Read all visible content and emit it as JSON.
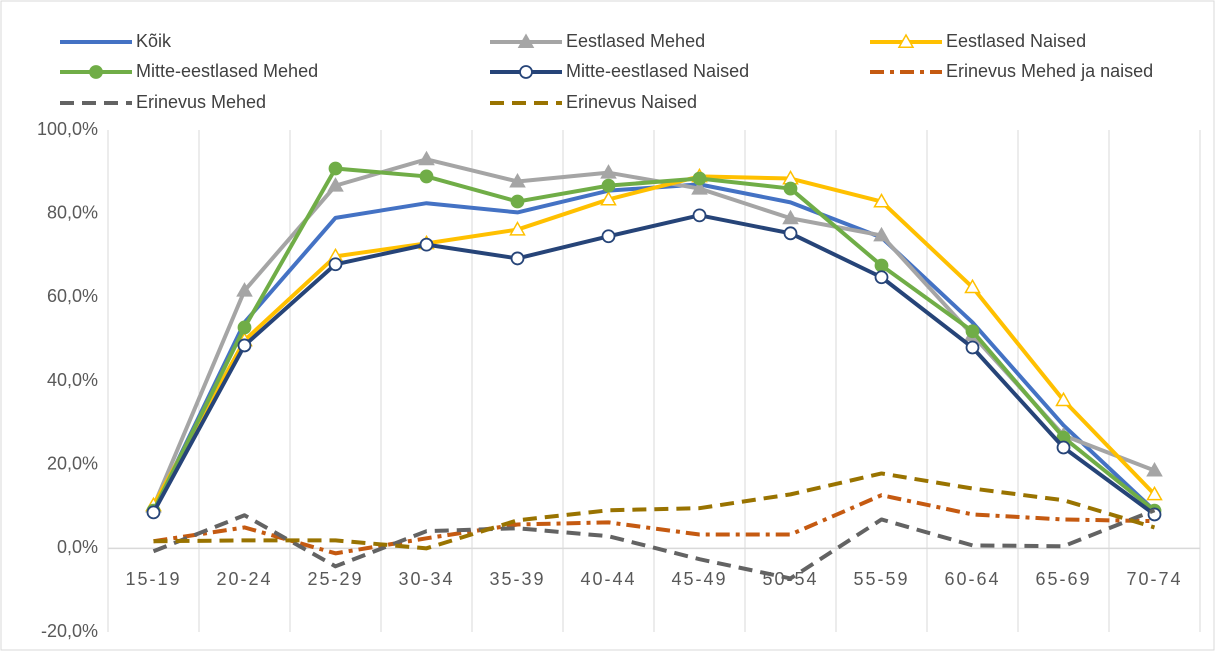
{
  "chart_data": {
    "type": "line",
    "categories": [
      "15-19",
      "20-24",
      "25-29",
      "30-34",
      "35-39",
      "40-44",
      "45-49",
      "50-54",
      "55-59",
      "60-64",
      "65-69",
      "70-74"
    ],
    "ylim": [
      -20,
      100
    ],
    "yticks": [
      {
        "value": -20,
        "label": "-20,0%"
      },
      {
        "value": 0,
        "label": "0,0%"
      },
      {
        "value": 20,
        "label": "20,0%"
      },
      {
        "value": 40,
        "label": "40,0%"
      },
      {
        "value": 60,
        "label": "60,0%"
      },
      {
        "value": 80,
        "label": "80,0%"
      },
      {
        "value": 100,
        "label": "100,0%"
      }
    ],
    "xgrid": true,
    "ygrid": false,
    "legend": "top",
    "series": [
      {
        "name": "Kõik",
        "color": "#4472c4",
        "marker": "none",
        "dash": "solid",
        "values": [
          9,
          54,
          79,
          82.5,
          80.3,
          85.5,
          87,
          82.7,
          74.3,
          54,
          29.4,
          9
        ]
      },
      {
        "name": "Eestlased Mehed",
        "color": "#a5a5a5",
        "marker": "triangle",
        "dash": "solid",
        "values": [
          10,
          61.6,
          86.7,
          93,
          87.7,
          89.8,
          86,
          78.9,
          74.8,
          51,
          27,
          18.6
        ]
      },
      {
        "name": "Eestlased Naised",
        "color": "#ffc000",
        "marker": "open-triangle",
        "dash": "solid",
        "values": [
          10.3,
          49.7,
          69.8,
          72.9,
          76.2,
          83.4,
          88.9,
          88.4,
          82.9,
          62.4,
          35.4,
          12.9
        ]
      },
      {
        "name": "Mitte-eestlased Mehed",
        "color": "#70ad47",
        "marker": "circle",
        "dash": "solid",
        "values": [
          9,
          52.8,
          90.8,
          88.9,
          82.9,
          86.7,
          88.4,
          86,
          67.6,
          51.9,
          26.5,
          9
        ]
      },
      {
        "name": "Mitte-eestlased Naised",
        "color": "#264478",
        "marker": "open-circle",
        "dash": "solid",
        "values": [
          8.6,
          48.5,
          67.9,
          72.6,
          69.3,
          74.6,
          79.6,
          75.3,
          64.8,
          48,
          24.1,
          8.1
        ]
      },
      {
        "name": "Erinevus Mehed ja naised",
        "color": "#c55a11",
        "marker": "none",
        "dash": "dash-dot",
        "values": [
          1.7,
          5,
          -1.2,
          2.4,
          5.7,
          6.2,
          3.3,
          3.3,
          12.7,
          8.1,
          6.9,
          6.5
        ]
      },
      {
        "name": "Erinevus Mehed",
        "color": "#636363",
        "marker": "none",
        "dash": "dash",
        "values": [
          -0.7,
          7.9,
          -4.3,
          4.1,
          4.8,
          2.9,
          -2.6,
          -7.2,
          6.9,
          0.7,
          0.5,
          9.1
        ]
      },
      {
        "name": "Erinevus Naised",
        "color": "#997300",
        "marker": "none",
        "dash": "dash",
        "values": [
          1.7,
          1.9,
          1.9,
          0,
          6.7,
          9.1,
          9.6,
          12.9,
          17.9,
          14.3,
          11.5,
          5
        ]
      }
    ]
  }
}
